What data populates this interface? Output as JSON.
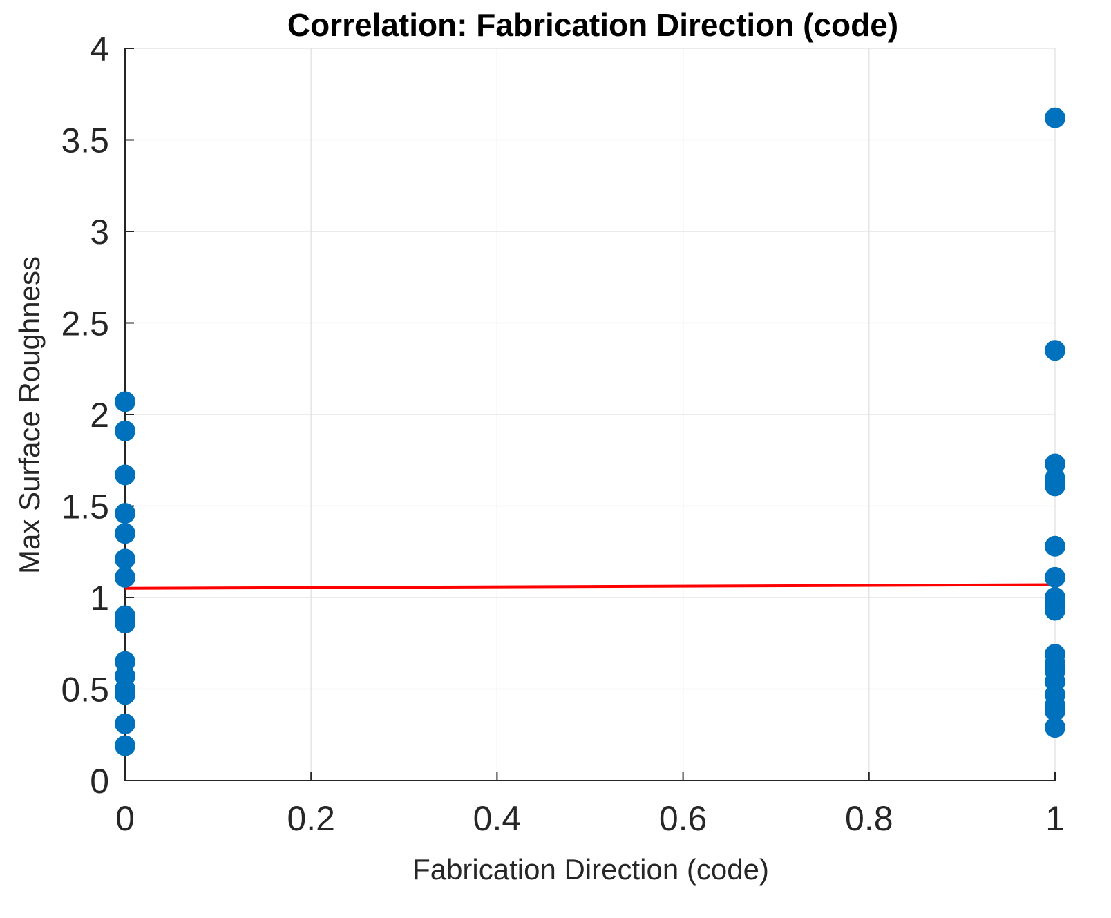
{
  "chart_data": {
    "type": "scatter",
    "title": "Correlation: Fabrication Direction (code)",
    "xlabel": "Fabrication Direction (code)",
    "ylabel": "Max Surface Roughness",
    "xlim": [
      0,
      1
    ],
    "ylim": [
      0,
      4
    ],
    "xticks": [
      "0",
      "0.2",
      "0.4",
      "0.6",
      "0.8",
      "1"
    ],
    "yticks": [
      "0",
      "0.5",
      "1",
      "1.5",
      "2",
      "2.5",
      "3",
      "3.5",
      "4"
    ],
    "grid": true,
    "legend": "none",
    "series": [
      {
        "color": "#0072BD",
        "marker": "filled-circle",
        "points": [
          {
            "x": 0,
            "y": 2.07
          },
          {
            "x": 0,
            "y": 1.91
          },
          {
            "x": 0,
            "y": 1.67
          },
          {
            "x": 0,
            "y": 1.46
          },
          {
            "x": 0,
            "y": 1.35
          },
          {
            "x": 0,
            "y": 1.21
          },
          {
            "x": 0,
            "y": 1.11
          },
          {
            "x": 0,
            "y": 0.9
          },
          {
            "x": 0,
            "y": 0.86
          },
          {
            "x": 0,
            "y": 0.65
          },
          {
            "x": 0,
            "y": 0.57
          },
          {
            "x": 0,
            "y": 0.5
          },
          {
            "x": 0,
            "y": 0.47
          },
          {
            "x": 0,
            "y": 0.31
          },
          {
            "x": 0,
            "y": 0.19
          },
          {
            "x": 1,
            "y": 3.62
          },
          {
            "x": 1,
            "y": 2.35
          },
          {
            "x": 1,
            "y": 1.73
          },
          {
            "x": 1,
            "y": 1.65
          },
          {
            "x": 1,
            "y": 1.61
          },
          {
            "x": 1,
            "y": 1.28
          },
          {
            "x": 1,
            "y": 1.11
          },
          {
            "x": 1,
            "y": 1.0
          },
          {
            "x": 1,
            "y": 0.96
          },
          {
            "x": 1,
            "y": 0.93
          },
          {
            "x": 1,
            "y": 0.69
          },
          {
            "x": 1,
            "y": 0.64
          },
          {
            "x": 1,
            "y": 0.6
          },
          {
            "x": 1,
            "y": 0.54
          },
          {
            "x": 1,
            "y": 0.47
          },
          {
            "x": 1,
            "y": 0.41
          },
          {
            "x": 1,
            "y": 0.38
          },
          {
            "x": 1,
            "y": 0.29
          }
        ]
      }
    ],
    "fit_line": {
      "color": "#FF0000",
      "x": [
        0,
        1
      ],
      "y": [
        1.05,
        1.07
      ]
    }
  }
}
